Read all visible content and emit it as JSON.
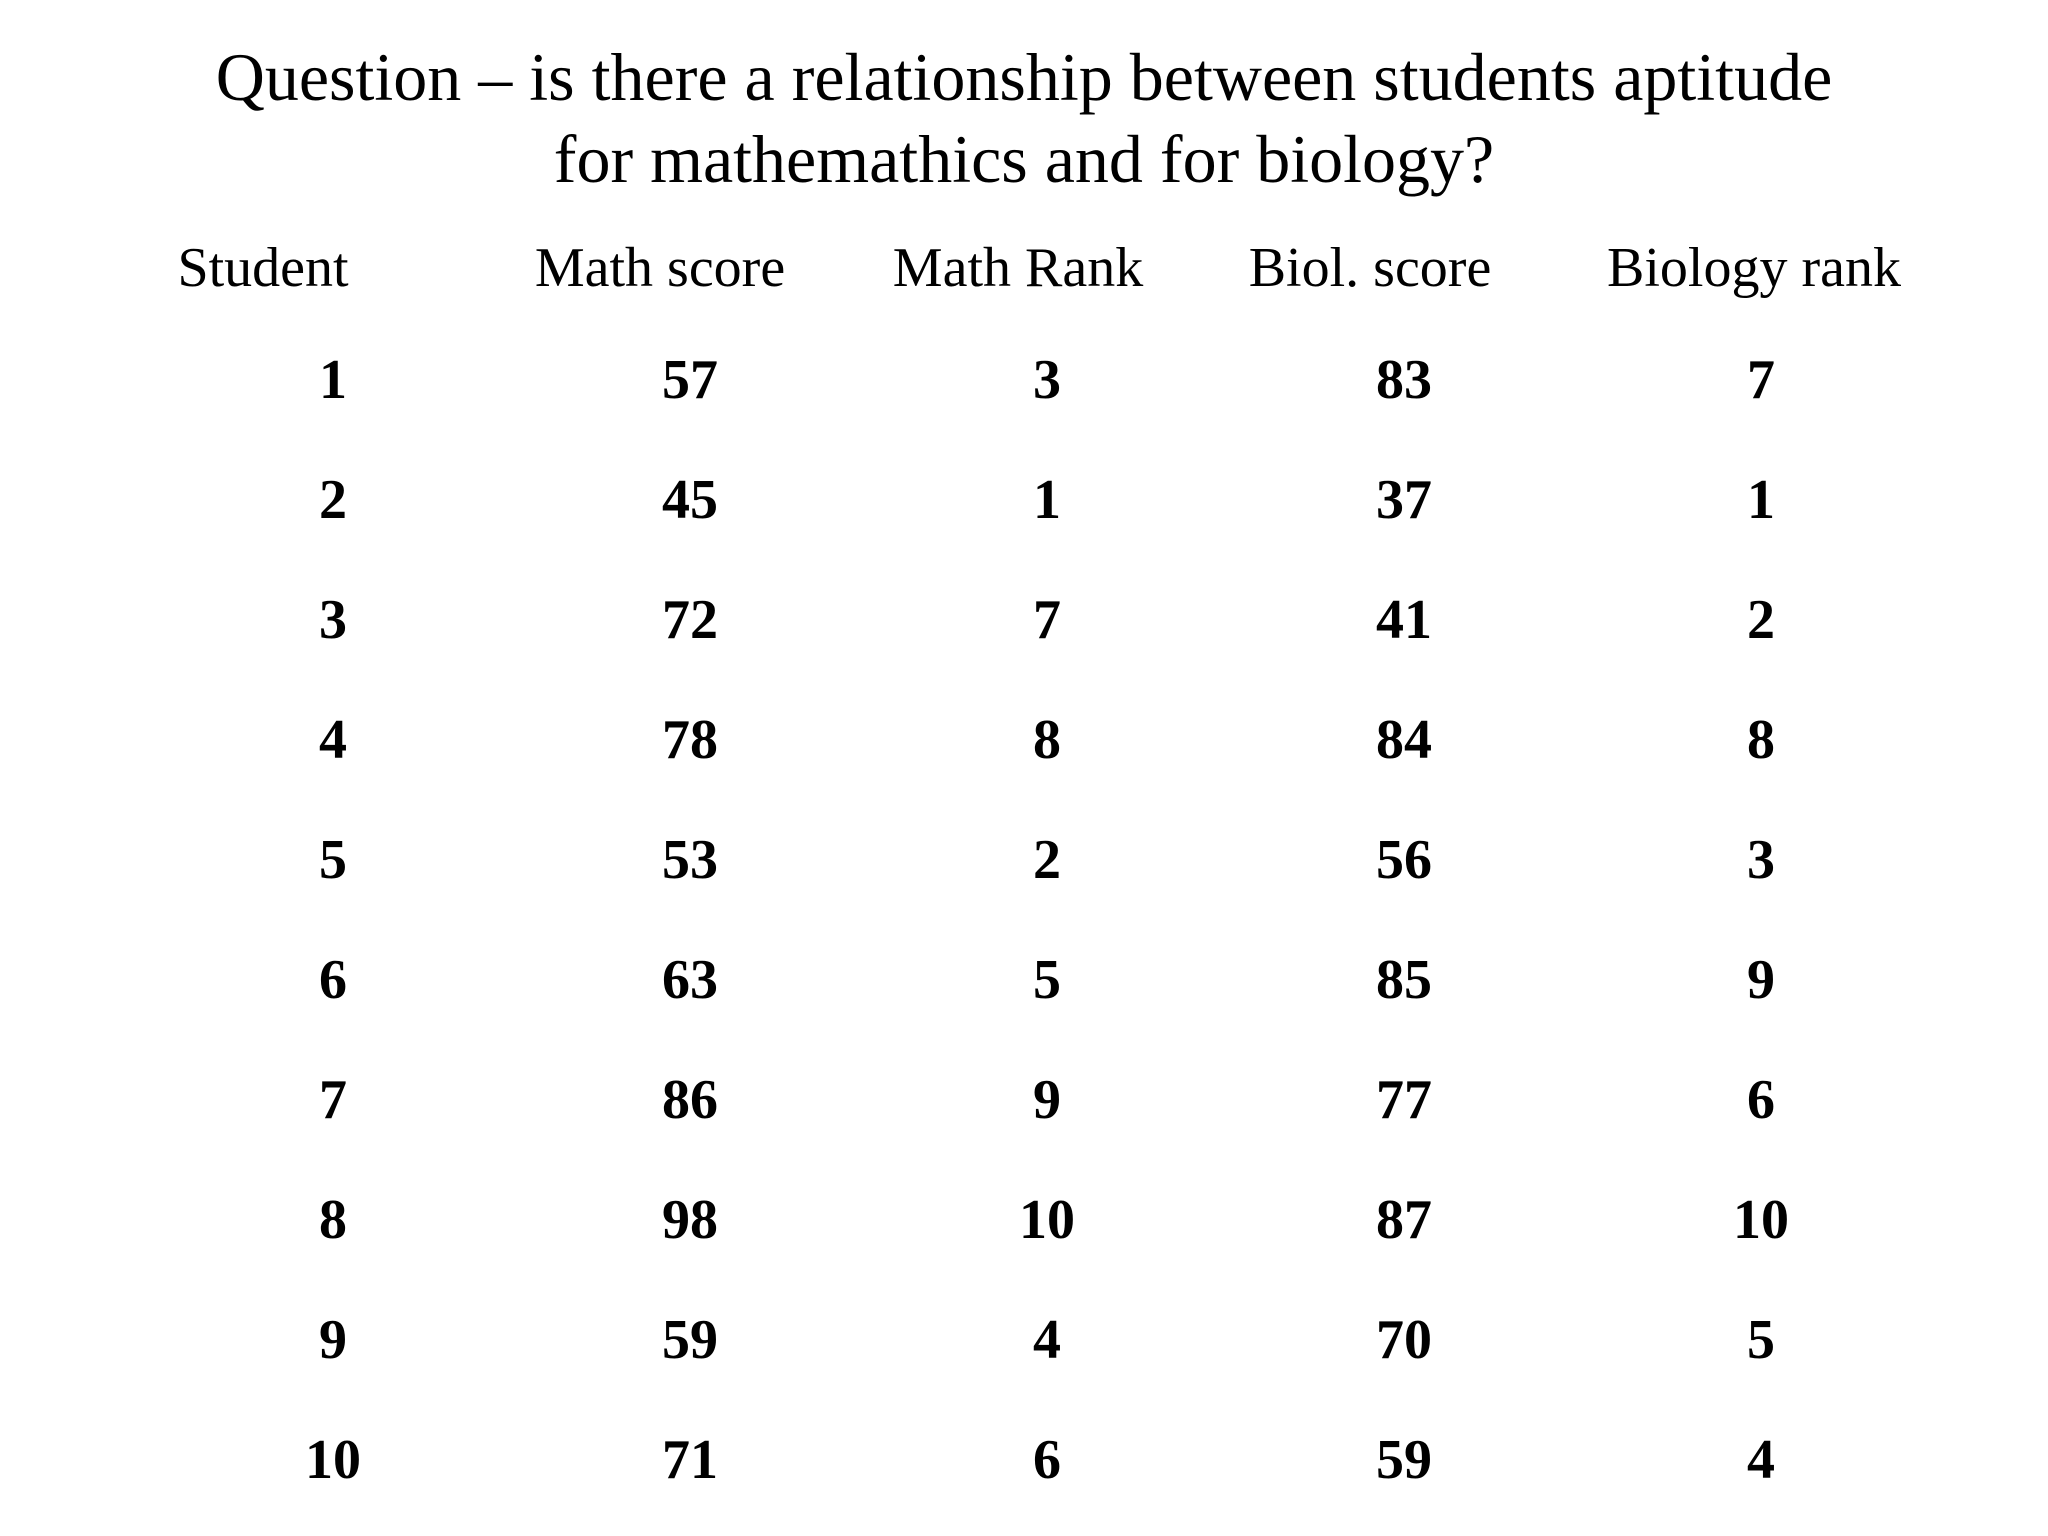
{
  "title": {
    "line1": "Question – is there a relationship between students aptitude",
    "line2": "for mathemathics and for biology?"
  },
  "table": {
    "columns": [
      "Student",
      "Math score",
      "Math Rank",
      "Biol. score",
      "Biology rank"
    ],
    "rows": [
      [
        "1",
        "57",
        "3",
        "83",
        "7"
      ],
      [
        "2",
        "45",
        "1",
        "37",
        "1"
      ],
      [
        "3",
        "72",
        "7",
        "41",
        "2"
      ],
      [
        "4",
        "78",
        "8",
        "84",
        "8"
      ],
      [
        "5",
        "53",
        "2",
        "56",
        "3"
      ],
      [
        "6",
        "63",
        "5",
        "85",
        "9"
      ],
      [
        "7",
        "86",
        "9",
        "77",
        "6"
      ],
      [
        "8",
        "98",
        "10",
        "87",
        "10"
      ],
      [
        "9",
        "59",
        "4",
        "70",
        "5"
      ],
      [
        "10",
        "71",
        "6",
        "59",
        "4"
      ]
    ]
  }
}
